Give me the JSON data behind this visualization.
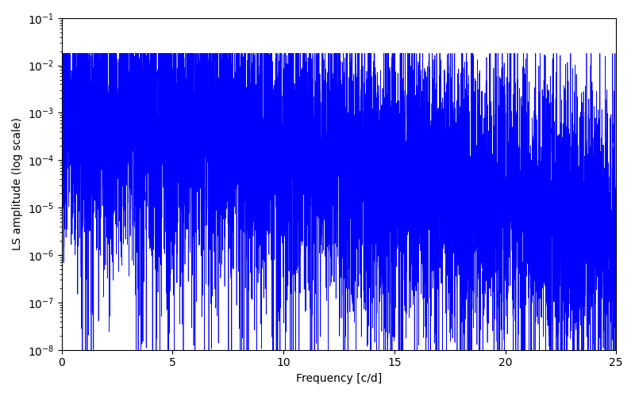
{
  "line_color": "#0000ff",
  "xlabel": "Frequency [c/d]",
  "ylabel": "LS amplitude (log scale)",
  "xlim": [
    0,
    25
  ],
  "ylim": [
    1e-08,
    0.1
  ],
  "yscale": "log",
  "figsize": [
    8.0,
    5.0
  ],
  "dpi": 100,
  "freq_min": 0.0,
  "freq_max": 25.0,
  "n_points": 8000,
  "random_seed": 7,
  "background_color": "#ffffff"
}
